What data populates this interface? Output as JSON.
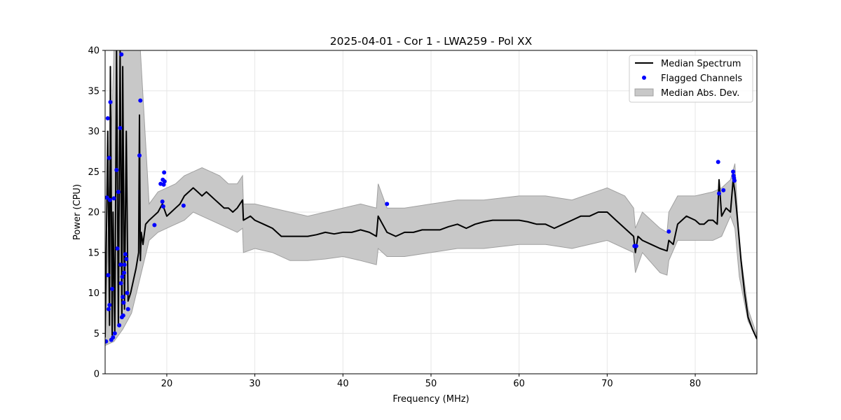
{
  "chart_data": {
    "type": "line",
    "title": "2025-04-01 - Cor 1 - LWA259 - Pol XX",
    "xlabel": "Frequency (MHz)",
    "ylabel": "Power (CPU)",
    "xlim": [
      13.0,
      87.0
    ],
    "ylim": [
      0,
      40
    ],
    "xticks": [
      20,
      30,
      40,
      50,
      60,
      70,
      80
    ],
    "yticks": [
      0,
      5,
      10,
      15,
      20,
      25,
      30,
      35,
      40
    ],
    "grid": true,
    "legend_position": "top-right",
    "colors": {
      "median": "#000000",
      "flagged": "#0000ff",
      "band_fill": "#c8c8c8",
      "band_edge": "#a0a0a0",
      "grid": "#e6e6e6"
    },
    "series": [
      {
        "name": "Median Spectrum",
        "kind": "line",
        "x": [
          13.0,
          13.3,
          13.5,
          13.6,
          13.8,
          13.9,
          14.1,
          14.3,
          14.5,
          14.7,
          14.9,
          15.0,
          15.2,
          15.4,
          15.6,
          15.9,
          16.2,
          16.5,
          16.8,
          16.9,
          17.0,
          17.1,
          17.3,
          17.6,
          18.0,
          18.5,
          19.0,
          19.5,
          20.0,
          20.5,
          21.0,
          21.5,
          22.0,
          22.5,
          23.0,
          23.5,
          24.0,
          24.5,
          25.0,
          25.5,
          26.0,
          26.5,
          27.0,
          27.5,
          28.0,
          28.6,
          28.7,
          29.5,
          30.0,
          31.0,
          32.0,
          33.0,
          34.0,
          35.0,
          36.0,
          37.0,
          38.0,
          39.0,
          40.0,
          41.0,
          42.0,
          43.0,
          43.8,
          44.0,
          45.0,
          46.0,
          47.0,
          48.0,
          49.0,
          50.0,
          51.0,
          52.0,
          53.0,
          54.0,
          55.0,
          56.0,
          57.0,
          58.0,
          59.0,
          60.0,
          61.0,
          62.0,
          63.0,
          64.0,
          65.0,
          66.0,
          67.0,
          68.0,
          69.0,
          70.0,
          71.0,
          72.0,
          73.0,
          73.2,
          73.5,
          74.0,
          75.0,
          76.0,
          76.8,
          77.0,
          77.5,
          78.0,
          79.0,
          80.0,
          80.5,
          81.0,
          81.5,
          82.0,
          82.5,
          82.7,
          83.0,
          83.5,
          84.0,
          84.3,
          84.5,
          84.8,
          85.2,
          85.6,
          86.0,
          86.5,
          87.0
        ],
        "y": [
          4.5,
          30.0,
          6.0,
          38.0,
          4.8,
          20.0,
          5.0,
          40.0,
          6.0,
          40.0,
          7.0,
          38.0,
          8.0,
          30.0,
          9.0,
          10.0,
          11.5,
          13.0,
          15.0,
          32.0,
          14.0,
          17.5,
          16.0,
          18.5,
          19.0,
          19.5,
          20.0,
          21.0,
          19.5,
          20.0,
          20.5,
          21.0,
          22.0,
          22.5,
          23.0,
          22.5,
          22.0,
          22.5,
          22.0,
          21.5,
          21.0,
          20.5,
          20.5,
          20.0,
          20.5,
          21.5,
          19.0,
          19.5,
          19.0,
          18.5,
          18.0,
          17.0,
          17.0,
          17.0,
          17.0,
          17.2,
          17.5,
          17.3,
          17.5,
          17.5,
          17.8,
          17.5,
          17.0,
          19.5,
          17.5,
          17.0,
          17.5,
          17.5,
          17.8,
          17.8,
          17.8,
          18.2,
          18.5,
          18.0,
          18.5,
          18.8,
          19.0,
          19.0,
          19.0,
          19.0,
          18.8,
          18.5,
          18.5,
          18.0,
          18.5,
          19.0,
          19.5,
          19.5,
          20.0,
          20.0,
          19.0,
          18.0,
          17.0,
          15.0,
          17.0,
          16.5,
          16.0,
          15.5,
          15.2,
          16.5,
          16.0,
          18.5,
          19.5,
          19.0,
          18.5,
          18.5,
          19.0,
          19.0,
          18.5,
          24.0,
          19.5,
          20.5,
          20.0,
          24.0,
          22.5,
          19.0,
          14.0,
          10.0,
          7.0,
          5.5,
          4.3
        ]
      },
      {
        "name": "Flagged Channels",
        "kind": "scatter",
        "x": [
          13.1,
          13.2,
          13.3,
          13.35,
          13.4,
          13.45,
          13.5,
          13.55,
          13.6,
          13.7,
          13.8,
          13.9,
          14.0,
          14.1,
          14.3,
          14.4,
          14.5,
          14.6,
          14.7,
          14.75,
          14.8,
          14.85,
          14.9,
          14.95,
          15.0,
          15.05,
          15.1,
          15.15,
          15.2,
          15.3,
          15.4,
          15.5,
          15.6,
          16.9,
          17.0,
          18.6,
          19.3,
          19.5,
          19.55,
          19.6,
          19.65,
          19.7,
          19.75,
          21.9,
          45.0,
          73.1,
          73.3,
          77.0,
          82.6,
          82.7,
          83.2,
          84.3,
          84.35,
          84.4,
          84.45
        ],
        "y": [
          4.0,
          21.8,
          31.6,
          12.2,
          8.0,
          26.7,
          8.5,
          21.5,
          33.6,
          4.2,
          10.5,
          4.5,
          21.7,
          5.0,
          25.2,
          15.5,
          22.5,
          6.0,
          30.4,
          13.5,
          11.2,
          39.5,
          7.0,
          12.0,
          9.5,
          7.2,
          8.8,
          12.5,
          13.5,
          14.8,
          14.2,
          10.0,
          8.0,
          27.0,
          33.8,
          18.4,
          23.5,
          21.3,
          24.0,
          20.7,
          23.4,
          24.9,
          23.8,
          20.8,
          21.0,
          15.8,
          15.8,
          17.6,
          26.2,
          22.3,
          22.7,
          25.0,
          24.5,
          24.2,
          23.9
        ]
      },
      {
        "name": "Median Abs. Dev.",
        "kind": "band",
        "x": [
          13.0,
          14.0,
          15.0,
          16.0,
          17.0,
          18.0,
          19.0,
          20.0,
          21.0,
          22.0,
          23.0,
          24.0,
          25.0,
          26.0,
          27.0,
          28.0,
          28.6,
          28.7,
          30.0,
          32.0,
          34.0,
          36.0,
          38.0,
          40.0,
          42.0,
          43.8,
          44.0,
          45.0,
          47.0,
          50.0,
          53.0,
          56.0,
          60.0,
          63.0,
          66.0,
          70.0,
          72.0,
          73.0,
          73.2,
          74.0,
          76.0,
          76.8,
          77.0,
          78.0,
          80.0,
          82.0,
          83.0,
          84.0,
          84.5,
          85.0,
          86.0,
          87.0
        ],
        "low": [
          3.5,
          4.0,
          5.5,
          7.5,
          12.0,
          16.5,
          17.5,
          18.0,
          18.5,
          19.0,
          20.0,
          19.5,
          19.0,
          18.5,
          18.0,
          17.5,
          18.0,
          15.0,
          15.5,
          15.0,
          14.0,
          14.0,
          14.2,
          14.5,
          14.0,
          13.5,
          15.5,
          14.5,
          14.5,
          15.0,
          15.5,
          15.5,
          16.0,
          16.0,
          15.5,
          16.5,
          15.5,
          15.0,
          12.5,
          15.0,
          12.5,
          12.2,
          14.0,
          16.5,
          16.5,
          16.5,
          17.0,
          19.5,
          18.0,
          12.0,
          6.5,
          4.5
        ],
        "high": [
          5.5,
          40.0,
          40.0,
          40.0,
          40.0,
          21.0,
          22.5,
          23.0,
          23.5,
          24.5,
          25.0,
          25.5,
          25.0,
          24.5,
          23.5,
          23.5,
          24.5,
          21.0,
          21.0,
          20.5,
          20.0,
          19.5,
          20.0,
          20.5,
          21.0,
          20.5,
          23.5,
          20.5,
          20.5,
          21.0,
          21.5,
          21.5,
          22.0,
          22.0,
          21.5,
          23.0,
          22.0,
          20.5,
          18.0,
          20.0,
          18.0,
          17.5,
          20.0,
          22.0,
          22.0,
          22.5,
          23.0,
          24.0,
          26.0,
          16.0,
          8.0,
          4.8
        ]
      }
    ]
  }
}
